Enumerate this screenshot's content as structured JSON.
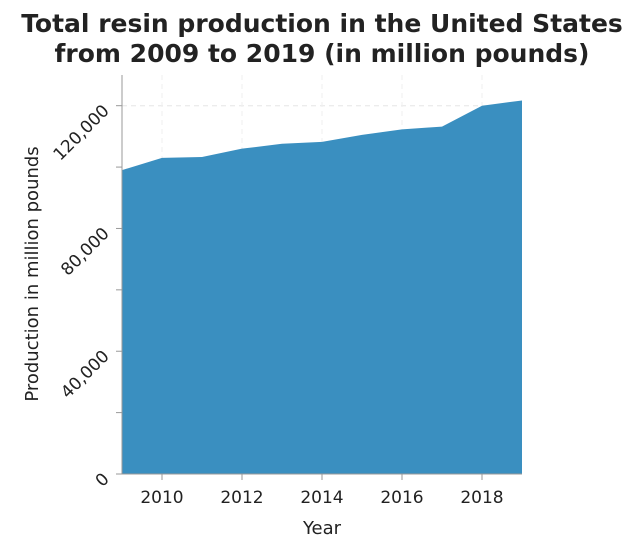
{
  "chart_data": {
    "type": "area",
    "title_lines": [
      "Total resin production in the United States",
      "from 2009 to 2019 (in million pounds)"
    ],
    "xlabel": "Year",
    "ylabel": "Production in million pounds",
    "x": [
      2009,
      2010,
      2011,
      2012,
      2013,
      2014,
      2015,
      2016,
      2017,
      2018,
      2019
    ],
    "series": [
      {
        "values": [
          99000,
          103000,
          103300,
          106000,
          107600,
          108200,
          110500,
          112300,
          113200,
          120000,
          121700
        ]
      }
    ],
    "xlim": [
      2009,
      2019
    ],
    "ylim": [
      0,
      130000
    ],
    "x_ticks": [
      2010,
      2012,
      2014,
      2016,
      2018
    ],
    "x_tick_labels": [
      "2010",
      "2012",
      "2014",
      "2016",
      "2018"
    ],
    "y_major_ticks": [
      0,
      40000,
      80000,
      120000
    ],
    "y_tick_labels": [
      "0",
      "40,000",
      "80,000",
      "120,000"
    ],
    "y_minor_ticks": [
      20000,
      60000,
      100000
    ],
    "grid": true,
    "fill_color": "#3a8fc0",
    "background_color": "#ffffff"
  }
}
